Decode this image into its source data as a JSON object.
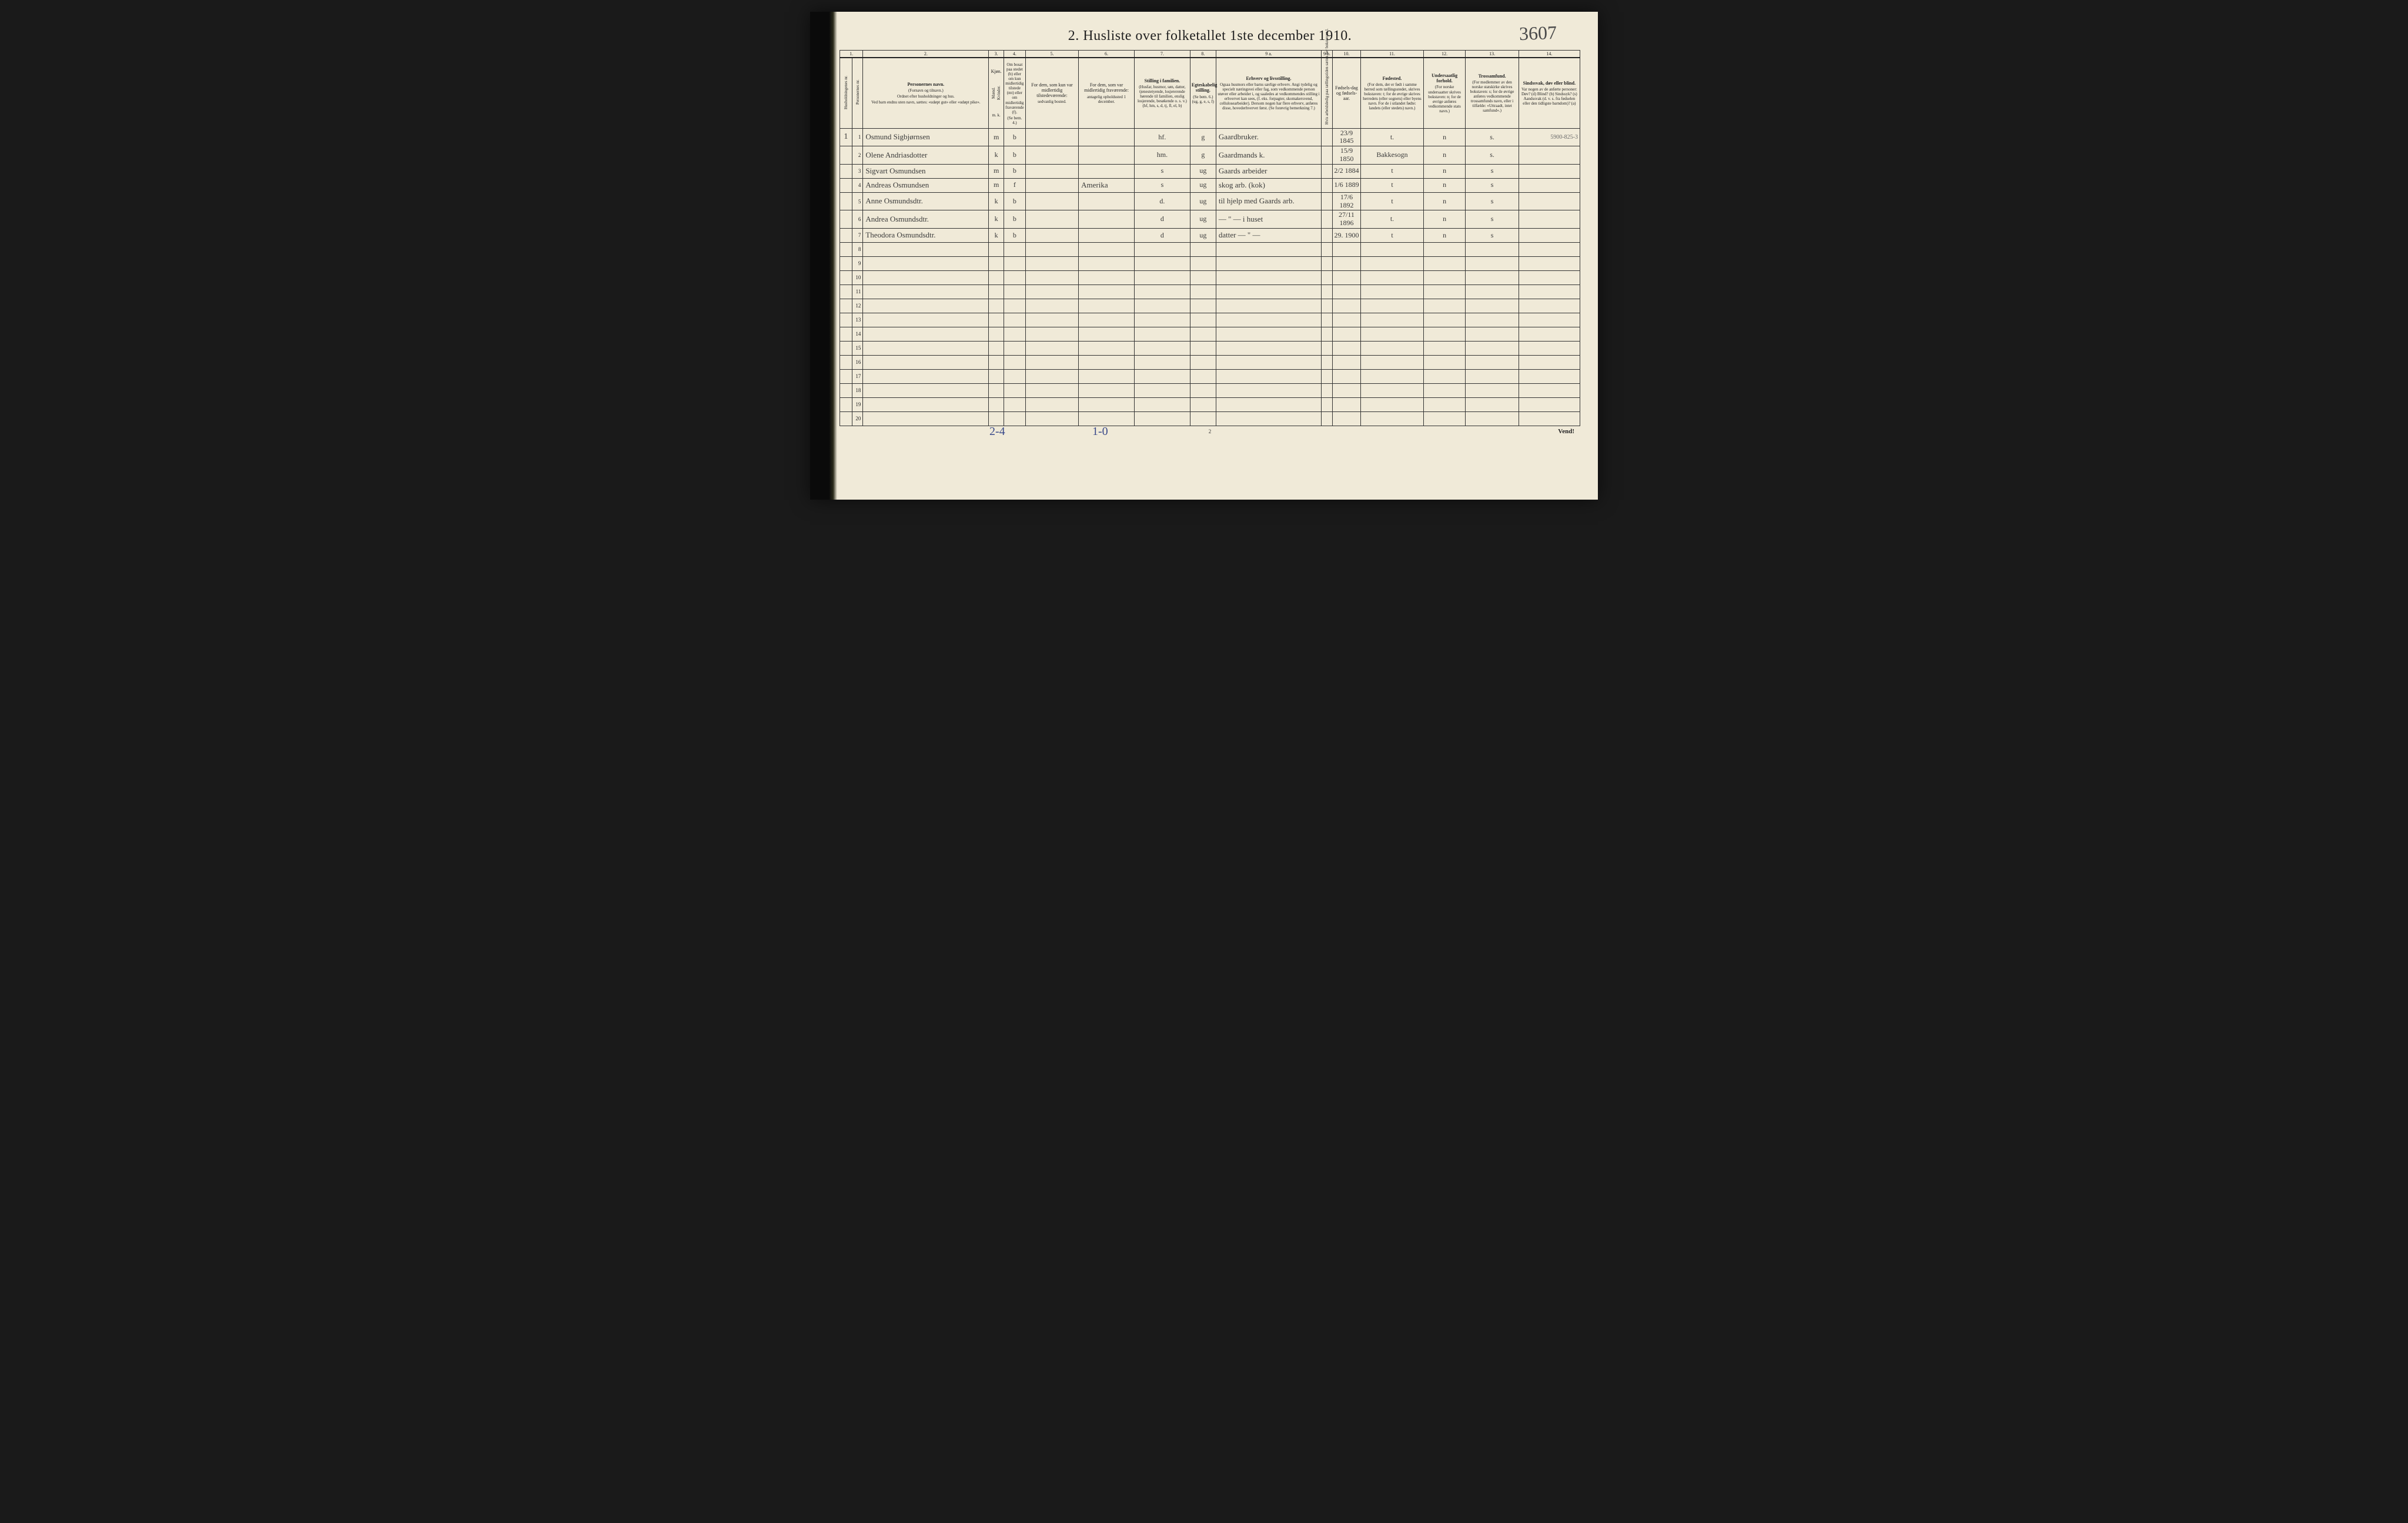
{
  "annotations": {
    "top_right": "3607",
    "row1_margin": "5900-825-3",
    "footer_left": "2-4",
    "footer_mid": "1-0"
  },
  "title": "2.   Husliste over folketallet 1ste december 1910.",
  "page_number": "2",
  "footer_right": "Vend!",
  "col_numbers": [
    "1.",
    "2.",
    "3.",
    "4.",
    "5.",
    "6.",
    "7.",
    "8.",
    "9 a.",
    "9 b.",
    "10.",
    "11.",
    "12.",
    "13.",
    "14."
  ],
  "headers": {
    "c1a": "Husholdningenes nr.",
    "c1b": "Personernes nr.",
    "c2_title": "Personernes navn.",
    "c2_sub1": "(Fornavn og tilnavn.)",
    "c2_sub2": "Ordnet efter husholdninger og hus.",
    "c2_sub3": "Ved barn endnu uten navn, sættes: «udøpt gut» eller «udøpt pike».",
    "c3": "Kjøn.",
    "c3m": "Mænd.",
    "c3k": "Kvinder.",
    "c3mk": "m.  k.",
    "c4_title": "Om bosat paa stedet (b) eller om kun midlertidig tilstede (mt) eller om midlertidig fraværende (f).",
    "c4_sub": "(Se bem. 4.)",
    "c5_title": "For dem, som kun var midlertidig tilstedeværende:",
    "c5_sub": "sedvanlig bosted.",
    "c6_title": "For dem, som var midlertidig fraværende:",
    "c6_sub": "antagelig opholdssted 1 december.",
    "c7_title": "Stilling i familien.",
    "c7_sub": "(Husfar, husmor, søn, datter, tjenestetyende, losjererende hørende til familien, enslig losjerende, besøkende o. s. v.) (hf, hm, s, d, tj, fl, el, b)",
    "c8_title": "Egteskabelig stilling.",
    "c8_sub": "(Se bem. 6.) (ug, g, e, s, f)",
    "c9a_title": "Erhverv og livsstilling.",
    "c9a_sub": "Ogsaa husmors eller barns særlige erhverv. Angi tydelig og specielt næringsvei eller fag, som vedkommende person utøver eller arbeider i, og saaledes at vedkommendes stilling i erhvervet kan sees, (f. eks. forpagter, skomakersvend, cellulosearbeider). Dersom nogen har flere erhverv, anføres disse, hovederhvervet først. (Se forøvrig bemerkning 7.)",
    "c9b": "Hvis arbeidsledig paa tællingstiden sættes her bokstaven l.",
    "c10_title": "Fødsels-dag og fødsels-aar.",
    "c11_title": "Fødested.",
    "c11_sub": "(For dem, der er født i samme herred som tællingsstedet, skrives bokstaven: t; for de øvrige skrives herredets (eller sognets) eller byens navn. For de i utlandet fødte: landets (eller stedets) navn.)",
    "c12_title": "Undersaatlig forhold.",
    "c12_sub": "(For norske undersaatter skrives bokstaven: n; for de øvrige anføres vedkommende stats navn.)",
    "c13_title": "Trossamfund.",
    "c13_sub": "(For medlemmer av den norske statskirke skrives bokstaven: s; for de øvrige anføres vedkommende trossamfunds navn, eller i tilfælde: «Uttraadt, intet samfund».)",
    "c14_title": "Sindssvak, døv eller blind.",
    "c14_sub": "Var nogen av de anførte personer: Døv? (d) Blind? (b) Sindssyk? (s) Aandssvak (d. v. s. fra fødselen eller den tidligste barndom)? (a)"
  },
  "rows": [
    {
      "pn": "1",
      "name": "Osmund Sigbjørnsen",
      "sex": "m",
      "res": "b",
      "temp": "",
      "abs": "",
      "fam": "hf.",
      "mar": "g",
      "occ": "Gaardbruker.",
      "bd": "23/9 1845",
      "bp": "t.",
      "nat": "n",
      "rel": "s.",
      "margin": "5900-825-3"
    },
    {
      "pn": "2",
      "name": "Olene Andriasdotter",
      "sex": "k",
      "res": "b",
      "temp": "",
      "abs": "",
      "fam": "hm.",
      "mar": "g",
      "occ": "Gaardmands k.",
      "bd": "15/9 1850",
      "bp": "Bakkesogn",
      "nat": "n",
      "rel": "s.",
      "margin": ""
    },
    {
      "pn": "3",
      "name": "Sigvart Osmundsen",
      "sex": "m",
      "res": "b",
      "temp": "",
      "abs": "",
      "fam": "s",
      "mar": "ug",
      "occ": "Gaards arbeider",
      "bd": "2/2 1884",
      "bp": "t",
      "nat": "n",
      "rel": "s",
      "margin": ""
    },
    {
      "pn": "4",
      "name": "Andreas Osmundsen",
      "sex": "m",
      "res": "f",
      "temp": "",
      "abs": "Amerika",
      "fam": "s",
      "mar": "ug",
      "occ": "skog arb. (kok)",
      "bd": "1/6 1889",
      "bp": "t",
      "nat": "n",
      "rel": "s",
      "margin": ""
    },
    {
      "pn": "5",
      "name": "Anne Osmundsdtr.",
      "sex": "k",
      "res": "b",
      "temp": "",
      "abs": "",
      "fam": "d.",
      "mar": "ug",
      "occ": "til hjelp med Gaards arb.",
      "bd": "17/6 1892",
      "bp": "t",
      "nat": "n",
      "rel": "s",
      "margin": ""
    },
    {
      "pn": "6",
      "name": "Andrea Osmundsdtr.",
      "sex": "k",
      "res": "b",
      "temp": "",
      "abs": "",
      "fam": "d",
      "mar": "ug",
      "occ": "— \" —  i huset",
      "bd": "27/11 1896",
      "bp": "t.",
      "nat": "n",
      "rel": "s",
      "margin": ""
    },
    {
      "pn": "7",
      "name": "Theodora Osmundsdtr.",
      "sex": "k",
      "res": "b",
      "temp": "",
      "abs": "",
      "fam": "d",
      "mar": "ug",
      "occ": "datter  — \" —",
      "bd": "29. 1900",
      "bp": "t",
      "nat": "n",
      "rel": "s",
      "margin": ""
    }
  ],
  "blank_rows": [
    "8",
    "9",
    "10",
    "11",
    "12",
    "13",
    "14",
    "15",
    "16",
    "17",
    "18",
    "19",
    "20"
  ],
  "colors": {
    "paper": "#f0ead8",
    "ink": "#222222",
    "script": "#3a3a3a",
    "pencil_blue": "#3a4a8a",
    "line": "#333333"
  }
}
